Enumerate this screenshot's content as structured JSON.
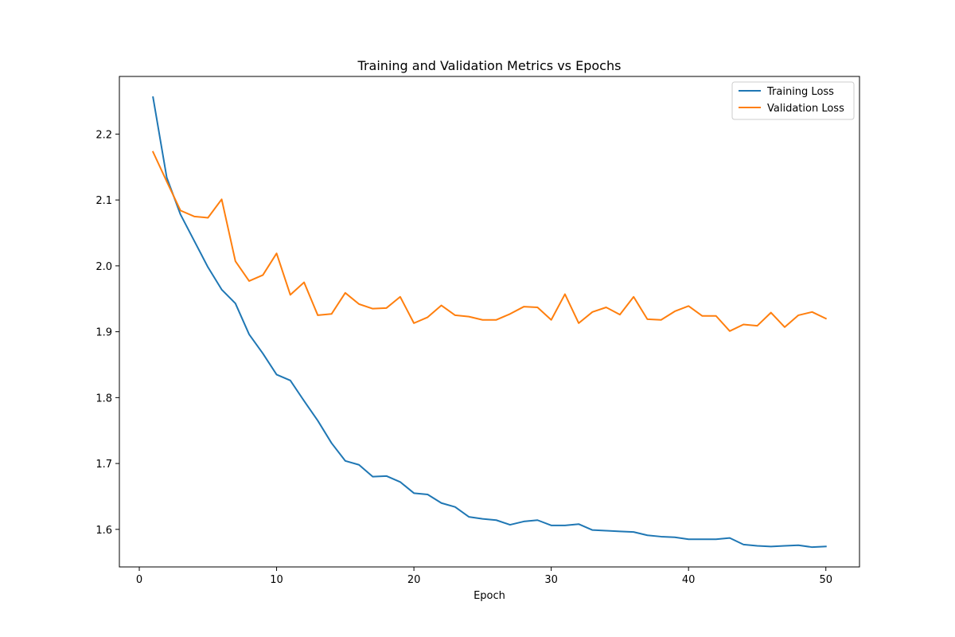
{
  "chart_data": {
    "type": "line",
    "title": "Training and Validation Metrics vs Epochs",
    "xlabel": "Epoch",
    "ylabel": "",
    "xlim": [
      -1.45,
      52.45
    ],
    "ylim": [
      1.543,
      2.2875
    ],
    "xticks": [
      0,
      10,
      20,
      30,
      40,
      50
    ],
    "yticks": [
      1.6,
      1.7,
      1.8,
      1.9,
      2.0,
      2.1,
      2.2
    ],
    "xtick_labels": [
      "0",
      "10",
      "20",
      "30",
      "40",
      "50"
    ],
    "ytick_labels": [
      "1.6",
      "1.7",
      "1.8",
      "1.9",
      "2.0",
      "2.1",
      "2.2"
    ],
    "grid": false,
    "legend": "top-right",
    "x": [
      1,
      2,
      3,
      4,
      5,
      6,
      7,
      8,
      9,
      10,
      11,
      12,
      13,
      14,
      15,
      16,
      17,
      18,
      19,
      20,
      21,
      22,
      23,
      24,
      25,
      26,
      27,
      28,
      29,
      30,
      31,
      32,
      33,
      34,
      35,
      36,
      37,
      38,
      39,
      40,
      41,
      42,
      43,
      44,
      45,
      46,
      47,
      48,
      49,
      50
    ],
    "series": [
      {
        "name": "Training Loss",
        "color": "#1f77b4",
        "values": [
          2.256,
          2.134,
          2.078,
          2.038,
          1.998,
          1.964,
          1.943,
          1.896,
          1.867,
          1.835,
          1.826,
          1.795,
          1.765,
          1.731,
          1.704,
          1.698,
          1.68,
          1.681,
          1.672,
          1.655,
          1.653,
          1.64,
          1.634,
          1.619,
          1.616,
          1.614,
          1.607,
          1.612,
          1.614,
          1.606,
          1.606,
          1.608,
          1.599,
          1.598,
          1.597,
          1.596,
          1.591,
          1.589,
          1.588,
          1.585,
          1.585,
          1.585,
          1.587,
          1.577,
          1.575,
          1.574,
          1.575,
          1.576,
          1.573,
          1.574
        ]
      },
      {
        "name": "Validation Loss",
        "color": "#ff7f0e",
        "values": [
          2.173,
          2.128,
          2.084,
          2.075,
          2.073,
          2.101,
          2.007,
          1.977,
          1.986,
          2.019,
          1.956,
          1.975,
          1.925,
          1.927,
          1.959,
          1.942,
          1.935,
          1.936,
          1.953,
          1.913,
          1.922,
          1.94,
          1.925,
          1.923,
          1.918,
          1.918,
          1.927,
          1.938,
          1.937,
          1.918,
          1.957,
          1.913,
          1.93,
          1.937,
          1.926,
          1.953,
          1.919,
          1.918,
          1.931,
          1.939,
          1.924,
          1.924,
          1.901,
          1.911,
          1.909,
          1.929,
          1.907,
          1.925,
          1.93,
          1.92
        ]
      }
    ]
  }
}
